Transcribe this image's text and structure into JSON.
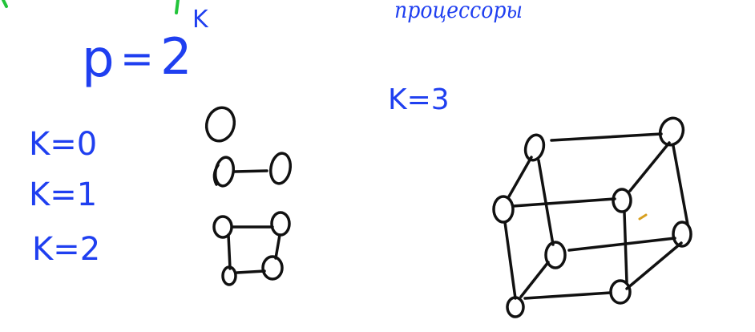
{
  "formula": {
    "lhs": "p",
    "eq": "=",
    "base": "2",
    "exponent": "K"
  },
  "top_right_word": "процессоры",
  "cube_label": "K=3",
  "levels": [
    {
      "label": "K=0"
    },
    {
      "label": "K=1"
    },
    {
      "label": "K=2"
    }
  ],
  "colors": {
    "blue_ink": "#1f3ff0",
    "black_ink": "#111111",
    "green_ink": "#22c43a"
  }
}
